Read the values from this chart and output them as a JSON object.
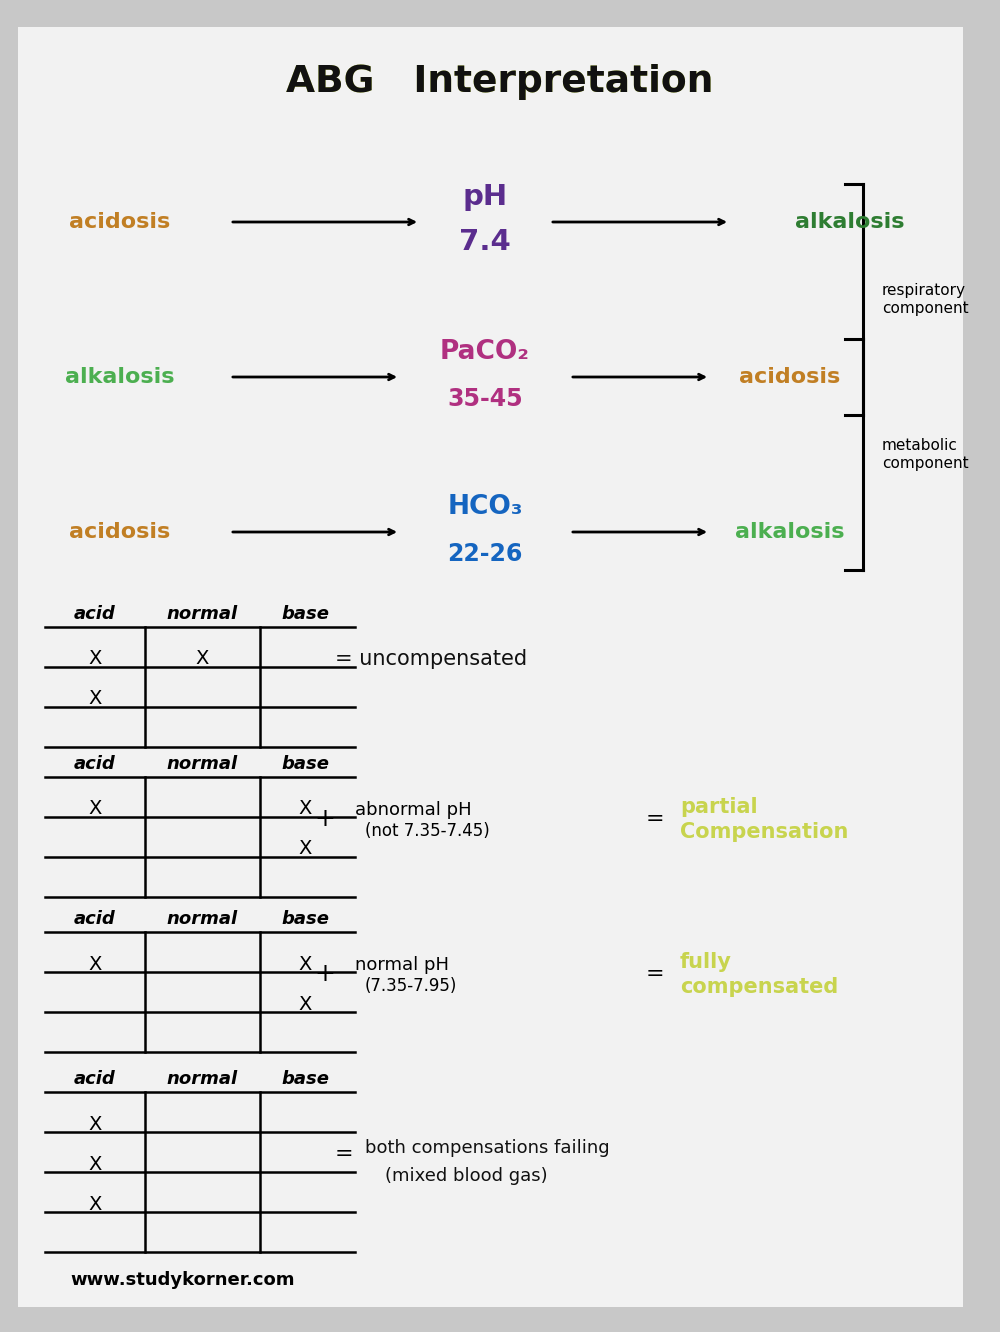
{
  "title": "ABG   Interpretation",
  "bg_color": "#c8c8c8",
  "paper_color": "#f2f2f2",
  "website": "www.studykorner.com",
  "ph_label": "pH",
  "ph_value": "7.4",
  "ph_color": "#5b2d8e",
  "acidosis_ph_color": "#c17f24",
  "alkalosis_ph_color": "#2e7d32",
  "paco2_label": "PaCO₂",
  "paco2_value": "35-45",
  "paco2_color": "#b03080",
  "alkalosis_paco2_color": "#4caf50",
  "acidosis_paco2_color": "#c17f24",
  "respiratory_label": "respiratory\ncomponent",
  "hco3_label": "HCO₃",
  "hco3_value": "22-26",
  "hco3_color": "#1565c0",
  "acidosis_hco3_color": "#c17f24",
  "alkalosis_hco3_color": "#4caf50",
  "metabolic_label": "metabolic\ncomponent",
  "uncompensated_color": "#111111",
  "partial_comp_color": "#c8d44e",
  "fully_comp_color": "#c8d44e",
  "mixed_color": "#111111",
  "title_highlight_color": "#d4e84e"
}
